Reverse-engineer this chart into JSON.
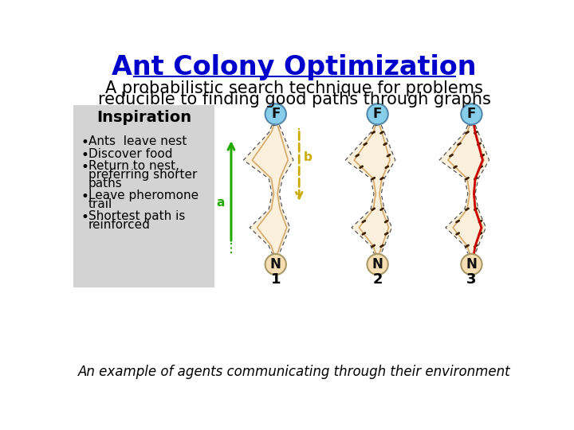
{
  "title": "Ant Colony Optimization",
  "title_color": "#0000CC",
  "title_fontsize": 24,
  "subtitle_line1": "A probabilistic search technique for problems",
  "subtitle_line2": "reducible to finding good paths through graphs",
  "subtitle_fontsize": 15,
  "subtitle_color": "#000000",
  "inspiration_title": "Inspiration",
  "inspiration_bg": "#D3D3D3",
  "bullet_points": [
    "Ants  leave nest",
    "Discover food",
    "Return to nest,\n  preferring shorter\n  paths",
    "Leave pheromone\n  trail",
    "Shortest path is\n  reinforced"
  ],
  "bullet_fontsize": 11,
  "footer": "An example of agents communicating through their environment",
  "footer_fontsize": 12,
  "footer_color": "#000000",
  "node_F_color": "#87CEEB",
  "node_N_color": "#F5DEB3",
  "bg_color": "#FFFFFF",
  "diagram_centers": [
    330,
    495,
    647
  ],
  "diagram_labels": [
    "1",
    "2",
    "3"
  ]
}
